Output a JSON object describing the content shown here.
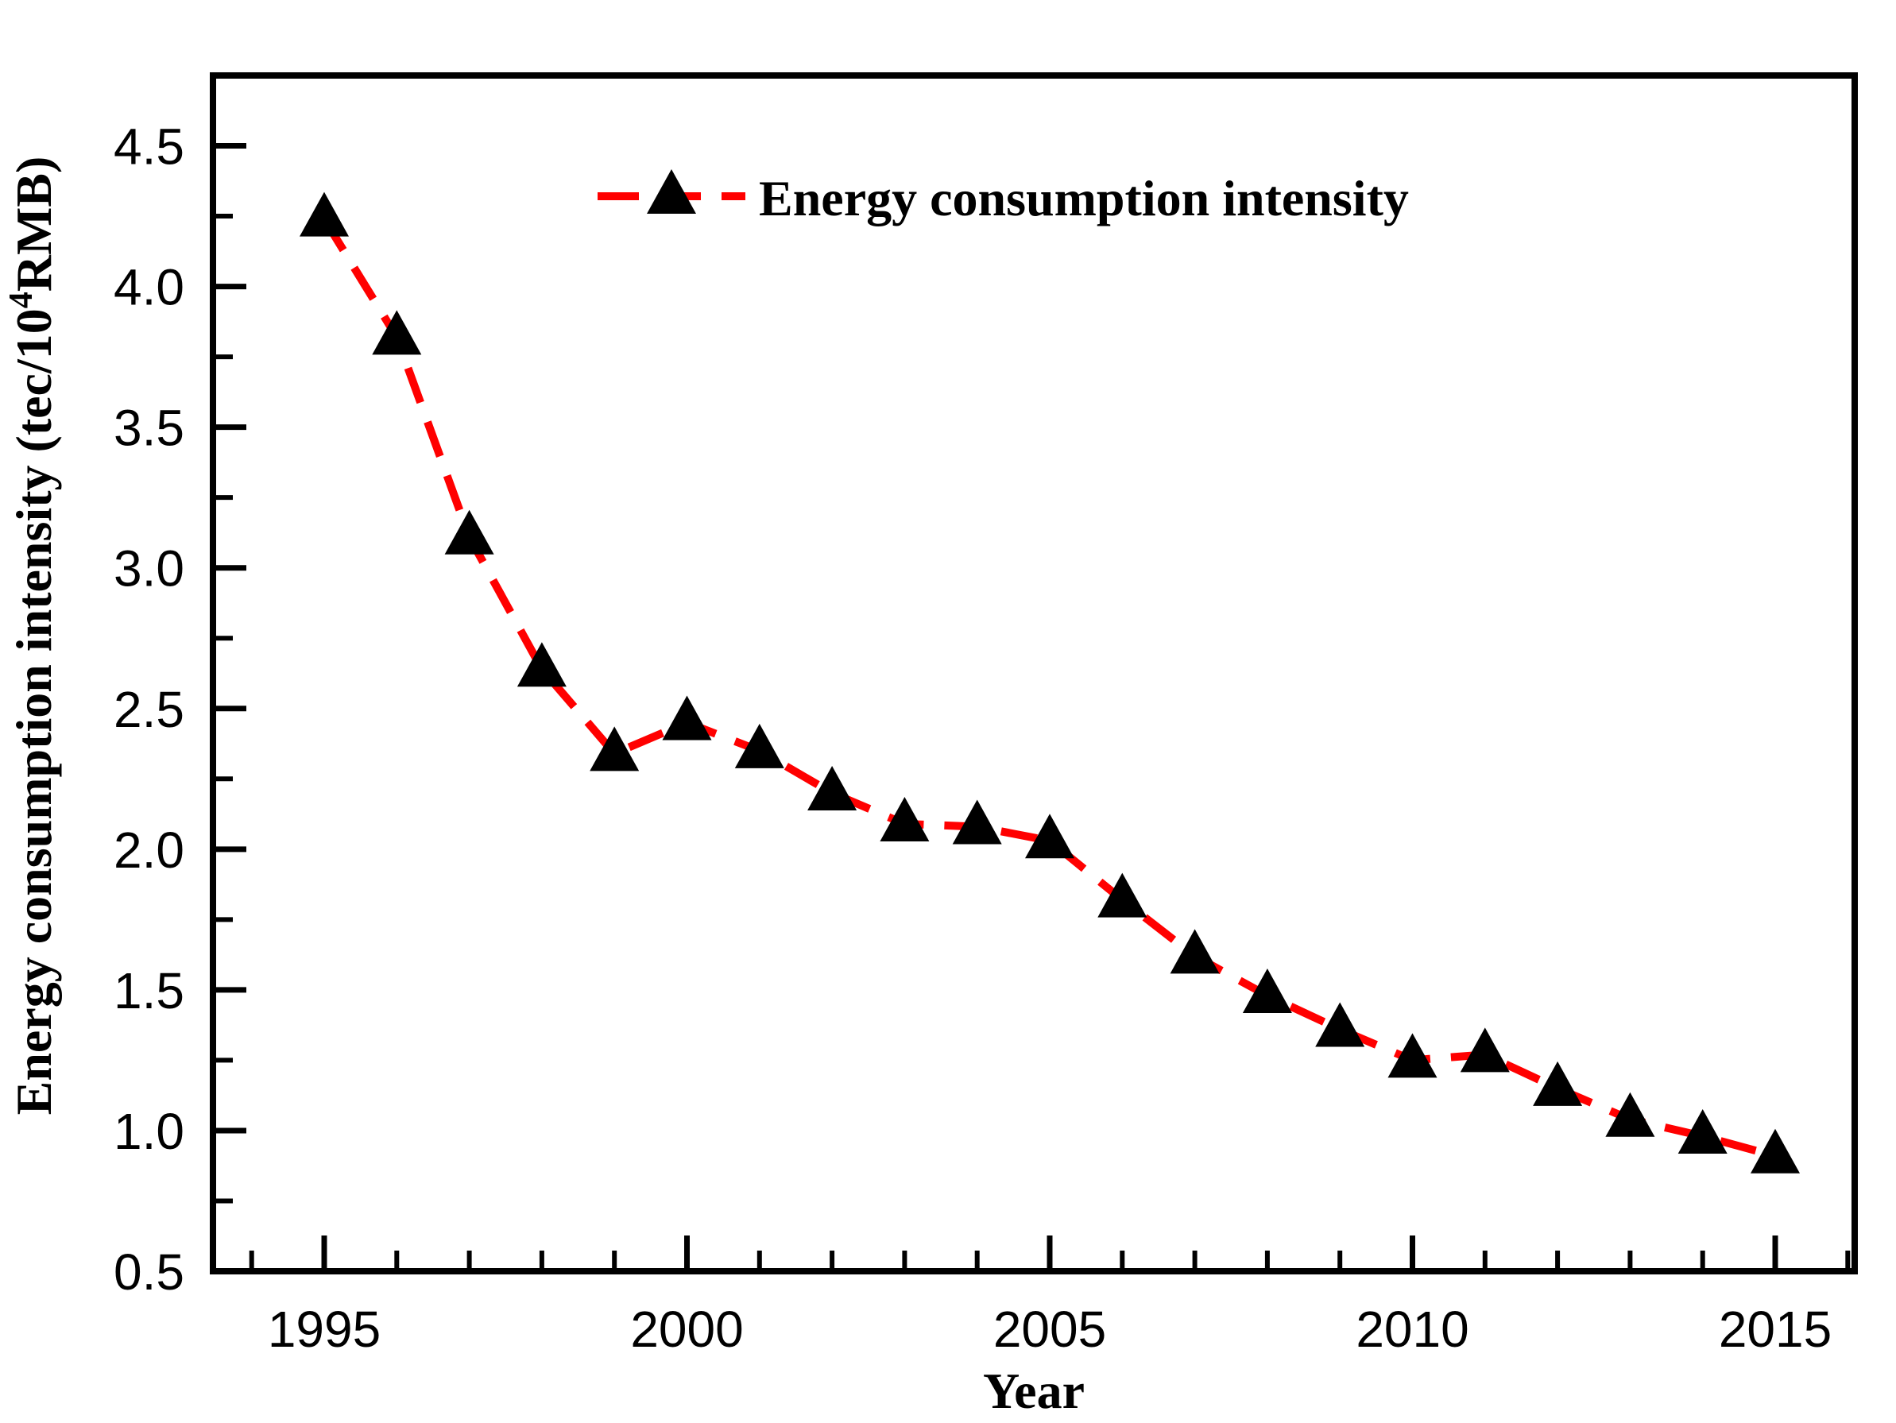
{
  "chart_data": {
    "type": "line",
    "title": "",
    "xlabel": "Year",
    "ylabel": "Energy consumption intensity (tec/10⁴RMB)",
    "ylabel_parts": {
      "pre": "Energy consumption intensity (tec/10",
      "sup": "4",
      "post": "RMB)"
    },
    "x": [
      1995,
      1996,
      1997,
      1998,
      1999,
      2000,
      2001,
      2002,
      2003,
      2004,
      2005,
      2006,
      2007,
      2008,
      2009,
      2010,
      2011,
      2012,
      2013,
      2014,
      2015
    ],
    "series": [
      {
        "name": "Energy consumption intensity",
        "values": [
          4.24,
          3.82,
          3.11,
          2.64,
          2.34,
          2.45,
          2.35,
          2.2,
          2.09,
          2.08,
          2.03,
          1.82,
          1.62,
          1.48,
          1.36,
          1.25,
          1.27,
          1.15,
          1.04,
          0.98,
          0.91
        ],
        "line_style": "dashed",
        "marker": "triangle-up"
      }
    ],
    "xlim": [
      1993.47,
      2016.07
    ],
    "ylim": [
      0.5,
      4.75
    ],
    "y_major_ticks": [
      0.5,
      1.0,
      1.5,
      2.0,
      2.5,
      3.0,
      3.5,
      4.0,
      4.5
    ],
    "y_tick_labels": [
      "0.5",
      "1.0",
      "1.5",
      "2.0",
      "2.5",
      "3.0",
      "3.5",
      "4.0",
      "4.5"
    ],
    "y_minor_step": 0.25,
    "x_major_ticks": [
      1995,
      2000,
      2005,
      2010,
      2015
    ],
    "x_tick_labels": [
      "1995",
      "2000",
      "2005",
      "2010",
      "2015"
    ],
    "x_minor_step": 1,
    "grid": false,
    "legend_position": "top-center"
  },
  "legend": {
    "label": "Energy consumption intensity"
  },
  "colors": {
    "line": "#FF0000",
    "marker": "#000000",
    "axis": "#000000",
    "background": "#FFFFFF"
  }
}
